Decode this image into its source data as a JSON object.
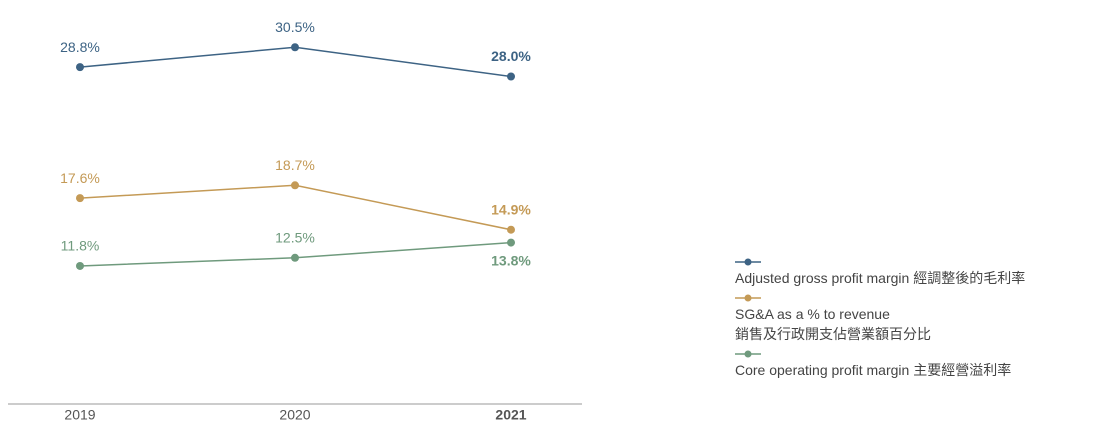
{
  "chart_data": {
    "type": "line",
    "categories": [
      "2019",
      "2020",
      "2021"
    ],
    "ylim": [
      0,
      33
    ],
    "series": [
      {
        "name": "Adjusted gross profit margin 經調整後的毛利率",
        "color": "#3d6384",
        "values": [
          28.8,
          30.5,
          28.0
        ],
        "value_labels": [
          "28.8%",
          "30.5%",
          "28.0%"
        ]
      },
      {
        "name": "SG&A as a % to revenue\n銷售及行政開支佔營業額百分比",
        "color": "#c49a56",
        "values": [
          17.6,
          18.7,
          14.9
        ],
        "value_labels": [
          "17.6%",
          "18.7%",
          "14.9%"
        ]
      },
      {
        "name": "Core operating profit margin 主要經營溢利率",
        "color": "#6f9a7d",
        "values": [
          11.8,
          12.5,
          13.8
        ],
        "value_labels": [
          "11.8%",
          "12.5%",
          "13.8%"
        ]
      }
    ]
  }
}
